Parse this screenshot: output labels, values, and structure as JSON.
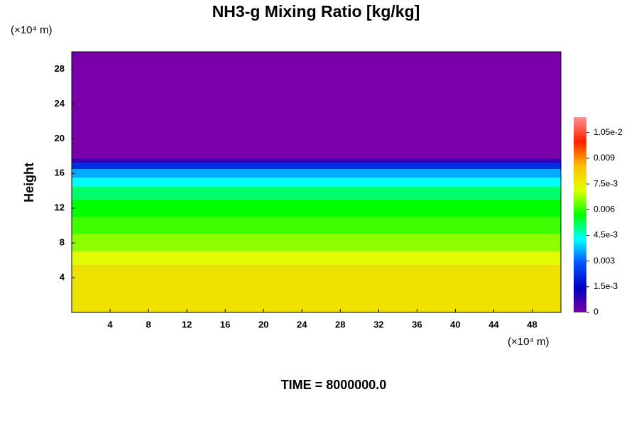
{
  "chart_data": {
    "type": "contour",
    "title": "NH3-g Mixing Ratio [kg/kg]",
    "ylabel": "Height",
    "y_unit": "(×10⁴ m)",
    "x_unit": "(×10⁴ m)",
    "footer": "TIME = 8000000.0",
    "xlim": [
      0,
      51
    ],
    "xticks": [
      4,
      8,
      12,
      16,
      20,
      24,
      28,
      32,
      36,
      40,
      44,
      48
    ],
    "ylim": [
      0,
      30
    ],
    "yticks": [
      4,
      8,
      12,
      16,
      20,
      24,
      28
    ],
    "levels": [
      0,
      5.5,
      7,
      9,
      11,
      13,
      14.5,
      15.5,
      16.5,
      17.2,
      17.7,
      30
    ],
    "values": [
      0.0078,
      0.0072,
      0.0066,
      0.0061,
      0.0057,
      0.0051,
      0.0043,
      0.0036,
      0.0022,
      0.0008,
      0
    ],
    "clim": [
      0,
      0.0114
    ],
    "colormap": [
      "#7800a8",
      "#0000c0",
      "#0050ff",
      "#00ffff",
      "#00ff00",
      "#e0ff00",
      "#ffc000",
      "#ff2000",
      "#ff9090"
    ],
    "cticks": [
      0,
      {
        "value": 0.0015,
        "label": "1.5e-3"
      },
      0.003,
      {
        "value": 0.0045,
        "label": "4.5e-3"
      },
      0.006,
      {
        "value": 0.0075,
        "label": "7.5e-3"
      },
      0.009,
      {
        "value": 0.0105,
        "label": "1.05e-2"
      }
    ]
  }
}
